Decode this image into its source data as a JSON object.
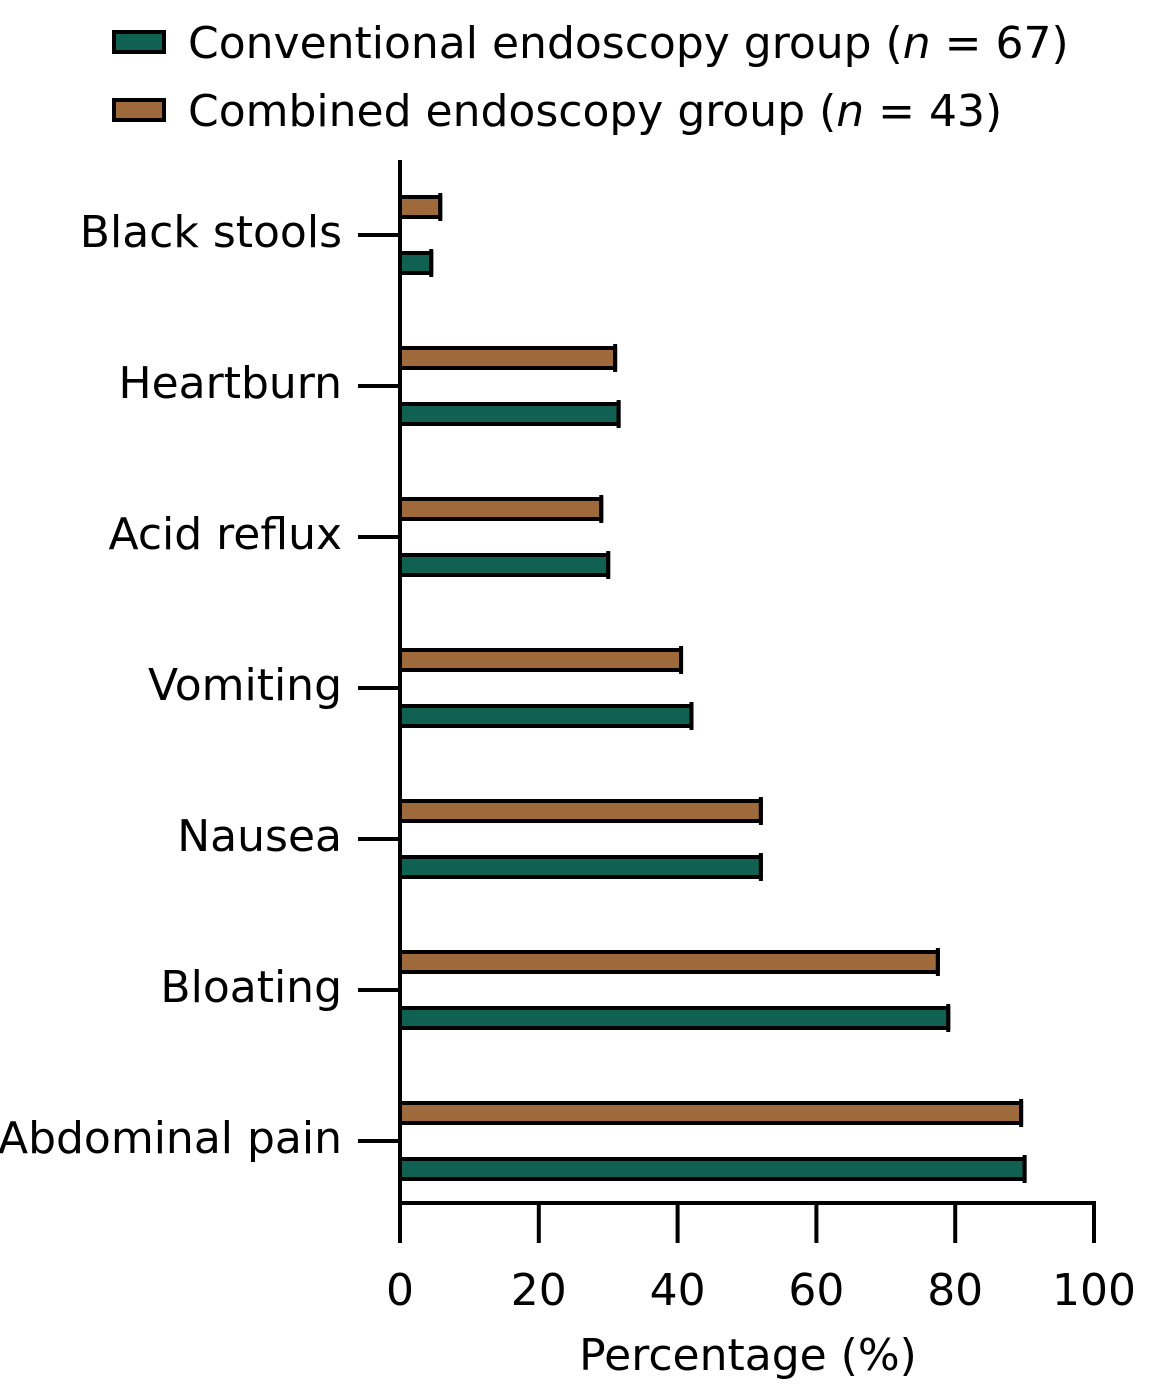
{
  "chart_data": {
    "type": "bar",
    "orientation": "horizontal",
    "categories": [
      "Black stools",
      "Heartburn",
      "Acid reflux",
      "Vomiting",
      "Nausea",
      "Bloating",
      "Abdominal pain"
    ],
    "series": [
      {
        "name": "Conventional endoscopy group",
        "n_label": "67",
        "color": "#116152",
        "values": [
          4.5,
          31.5,
          30,
          42,
          52,
          79,
          90
        ]
      },
      {
        "name": "Combined endoscopy group",
        "n_label": "43",
        "color": "#9e6a3c",
        "values": [
          5.8,
          31,
          29,
          40.5,
          52,
          77.5,
          89.5
        ]
      }
    ],
    "xlabel": "Percentage (%)",
    "xlim": [
      0,
      100
    ],
    "xticks": [
      0,
      20,
      40,
      60,
      80,
      100
    ],
    "legend": {
      "position": "top-left",
      "n_symbol": "n",
      "equals": "="
    },
    "grid": false
  }
}
